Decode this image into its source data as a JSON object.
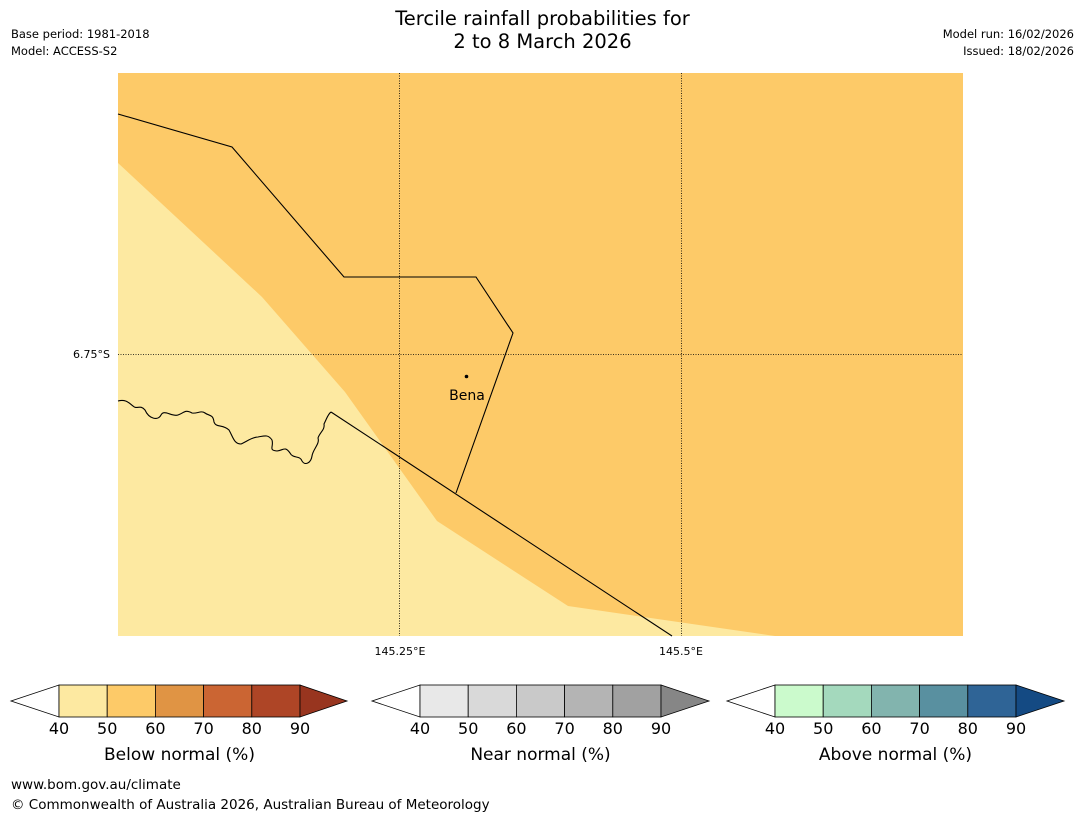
{
  "title": {
    "line1": "Tercile rainfall probabilities for",
    "line2": "2 to 8 March 2026"
  },
  "meta": {
    "base_period": "Base period: 1981-2018",
    "model": "Model: ACCESS-S2",
    "model_run": "Model run: 16/02/2026",
    "issued": "Issued: 18/02/2026"
  },
  "map": {
    "lat_label": "6.75°S",
    "lon_labels": [
      "145.25°E",
      "145.5°E"
    ],
    "town": "Bena",
    "regions": [
      {
        "name": "region-50-60",
        "category": "Below normal",
        "range": "50-60"
      },
      {
        "name": "region-40-50",
        "category": "Below normal",
        "range": "40-50"
      }
    ],
    "colors": {
      "band_40_50": "#fde9a1",
      "band_50_60": "#fdca68"
    }
  },
  "colorbars": [
    {
      "name": "below",
      "title": "Below normal (%)",
      "ticks": [
        "40",
        "50",
        "60",
        "70",
        "80",
        "90"
      ],
      "colors": [
        "#ffffff",
        "#fde9a1",
        "#fdca68",
        "#e09444",
        "#cb6533",
        "#ae4526",
        "#98351f"
      ]
    },
    {
      "name": "near",
      "title": "Near normal (%)",
      "ticks": [
        "40",
        "50",
        "60",
        "70",
        "80",
        "90"
      ],
      "colors": [
        "#ffffff",
        "#e8e8e8",
        "#d9d9d9",
        "#c9c9c9",
        "#b4b4b4",
        "#a1a1a1",
        "#868686"
      ]
    },
    {
      "name": "above",
      "title": "Above normal (%)",
      "ticks": [
        "40",
        "50",
        "60",
        "70",
        "80",
        "90"
      ],
      "colors": [
        "#ffffff",
        "#cbfacc",
        "#a4d9bd",
        "#82b4ae",
        "#5990a0",
        "#2f6496",
        "#144a83"
      ]
    }
  ],
  "footer": {
    "url": "www.bom.gov.au/climate",
    "copyright": "© Commonwealth of Australia 2026, Australian Bureau of Meteorology"
  }
}
